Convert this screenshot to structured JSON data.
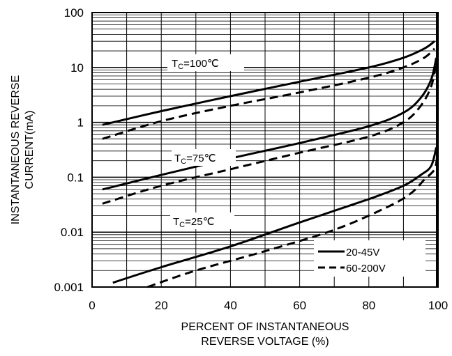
{
  "chart_data": {
    "type": "line",
    "title": "",
    "xlabel_lines": [
      "PERCENT OF INSTANTANEOUS",
      "REVERSE VOLTAGE (%)"
    ],
    "ylabel_lines": [
      "INSTANTANEOUS REVERSE",
      "CURRENT(mA)"
    ],
    "xlim": [
      0,
      100
    ],
    "ylim": [
      0.001,
      100
    ],
    "y_scale": "log",
    "grid": true,
    "x_ticks": [
      "0",
      "20",
      "40",
      "60",
      "80",
      "100"
    ],
    "y_ticks": [
      "0.001",
      "0.01",
      "0.1",
      "1",
      "10",
      "100"
    ],
    "legend": {
      "position": "bottom-right",
      "entries": [
        {
          "label": "20-45V",
          "style": "solid"
        },
        {
          "label": "60-200V",
          "style": "dashed"
        }
      ]
    },
    "annotations": [
      {
        "main": "T",
        "sub": "C",
        "rest": "=100℃"
      },
      {
        "main": "T",
        "sub": "C",
        "rest": "=75℃"
      },
      {
        "main": "T",
        "sub": "C",
        "rest": "=25℃"
      }
    ],
    "series": [
      {
        "condition": "Tc=100℃",
        "type": "20-45V",
        "style": "solid",
        "x": [
          3,
          20,
          40,
          60,
          80,
          90,
          96,
          99
        ],
        "y": [
          0.9,
          1.6,
          3.0,
          5.5,
          10,
          15,
          22,
          30
        ]
      },
      {
        "condition": "Tc=100℃",
        "type": "60-200V",
        "style": "dashed",
        "x": [
          3,
          20,
          40,
          60,
          80,
          90,
          96,
          99
        ],
        "y": [
          0.5,
          1.05,
          2.0,
          3.5,
          6.5,
          10,
          15,
          22
        ]
      },
      {
        "condition": "Tc=75℃",
        "type": "20-45V",
        "style": "solid",
        "x": [
          3,
          20,
          40,
          60,
          80,
          90,
          95,
          98,
          99.5
        ],
        "y": [
          0.06,
          0.11,
          0.22,
          0.42,
          0.85,
          1.5,
          2.8,
          6.0,
          15
        ]
      },
      {
        "condition": "Tc=75℃",
        "type": "60-200V",
        "style": "dashed",
        "x": [
          3,
          20,
          40,
          60,
          80,
          90,
          95,
          98,
          99.5
        ],
        "y": [
          0.033,
          0.07,
          0.14,
          0.28,
          0.55,
          1.0,
          2.0,
          4.5,
          12
        ]
      },
      {
        "condition": "Tc=25℃",
        "type": "20-45V",
        "style": "solid",
        "x": [
          6,
          20,
          40,
          60,
          80,
          90,
          95,
          98,
          99.5
        ],
        "y": [
          0.0012,
          0.0023,
          0.0055,
          0.015,
          0.04,
          0.07,
          0.11,
          0.16,
          0.35
        ]
      },
      {
        "condition": "Tc=25℃",
        "type": "60-200V",
        "style": "dashed",
        "x": [
          16,
          30,
          50,
          70,
          85,
          92,
          96,
          99,
          99.8
        ],
        "y": [
          0.001,
          0.002,
          0.0045,
          0.011,
          0.028,
          0.05,
          0.09,
          0.14,
          0.26
        ]
      }
    ]
  }
}
